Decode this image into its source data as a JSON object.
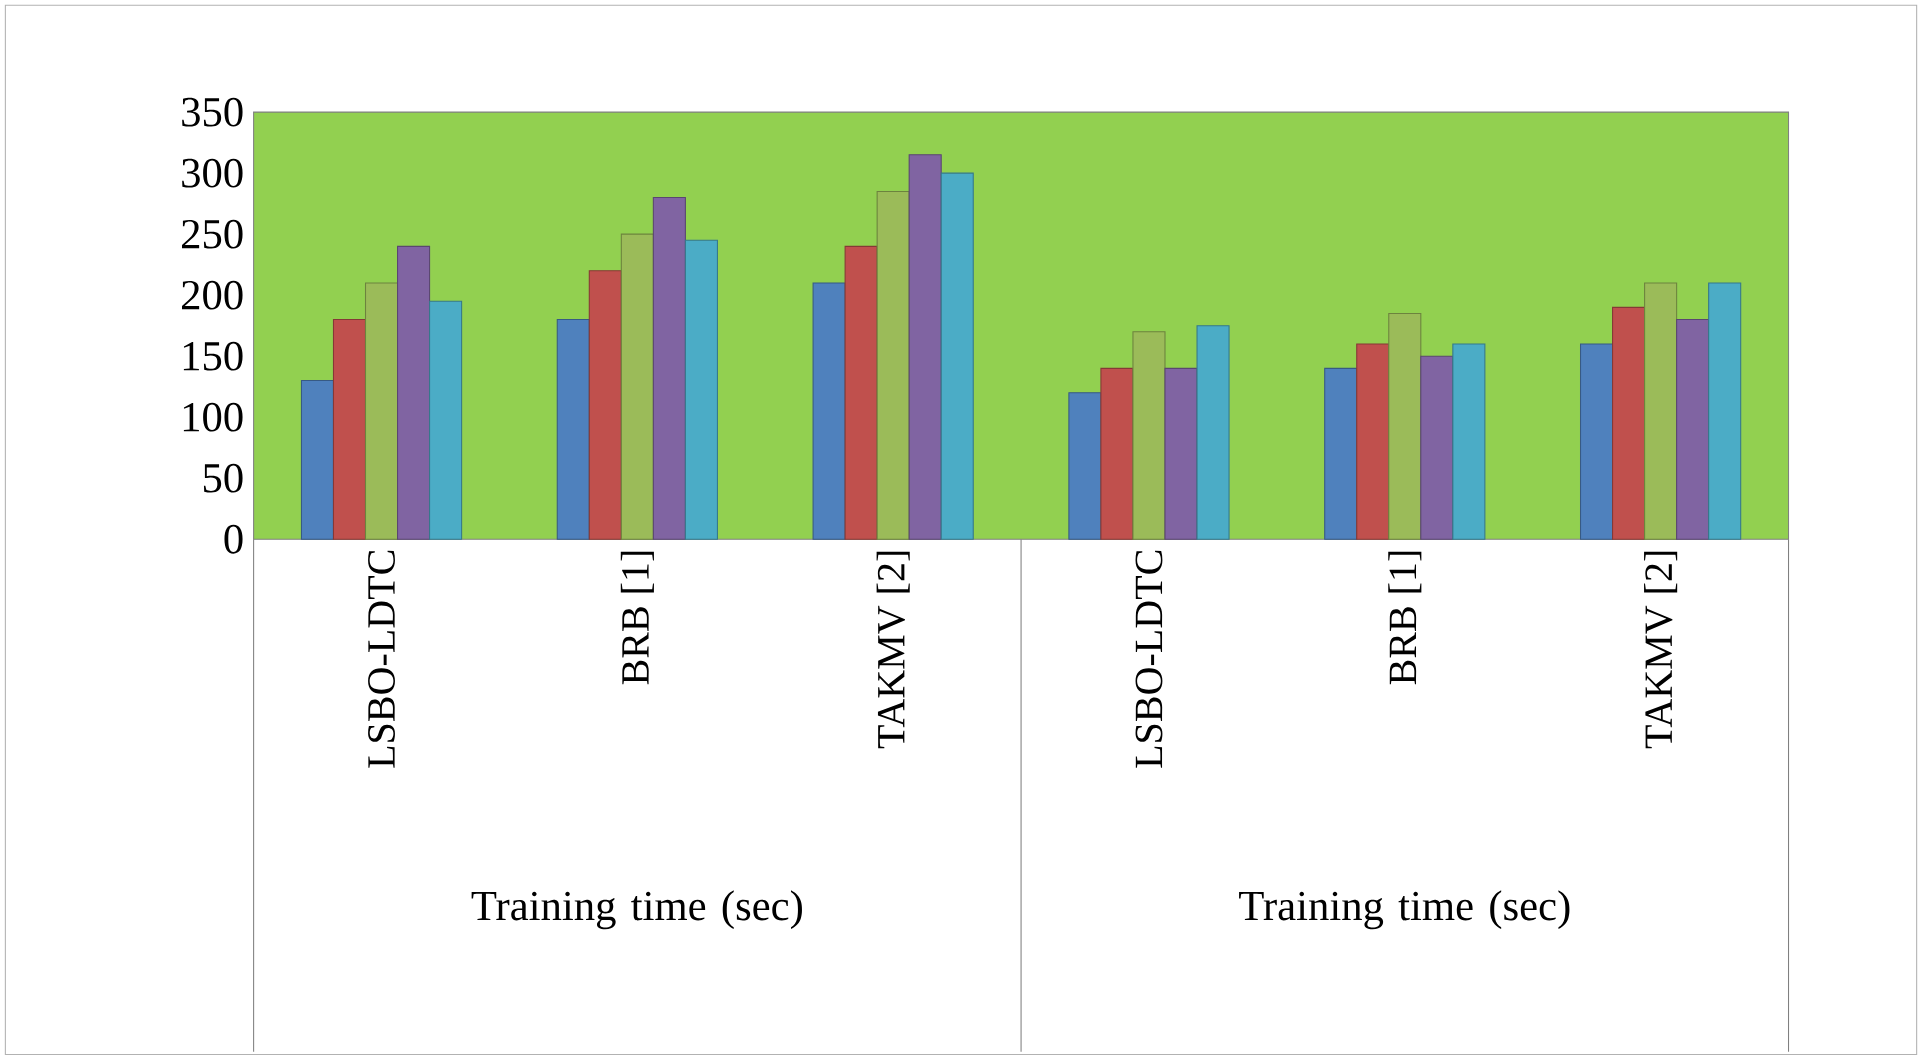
{
  "chart_data": {
    "type": "bar",
    "categories": [
      "LSBO-LDTC",
      "BRB [1]",
      "TAKMV [2]",
      "LSBO-LDTC",
      "BRB [1]",
      "TAKMV [2]"
    ],
    "series": [
      {
        "color": "#4f81bd",
        "values": [
          130,
          180,
          210,
          120,
          140,
          160
        ]
      },
      {
        "color": "#c0504d",
        "values": [
          180,
          220,
          240,
          140,
          160,
          190
        ]
      },
      {
        "color": "#9bbb59",
        "values": [
          210,
          250,
          285,
          170,
          185,
          210
        ]
      },
      {
        "color": "#8064a2",
        "values": [
          240,
          280,
          315,
          140,
          150,
          180
        ]
      },
      {
        "color": "#4bacc6",
        "values": [
          195,
          245,
          300,
          175,
          160,
          210
        ]
      }
    ],
    "ylim": [
      0,
      350
    ],
    "yticks": [
      0,
      50,
      100,
      150,
      200,
      250,
      300,
      350
    ],
    "grid": false,
    "annotations": [
      "Training time (sec)",
      "Training time (sec)"
    ]
  }
}
